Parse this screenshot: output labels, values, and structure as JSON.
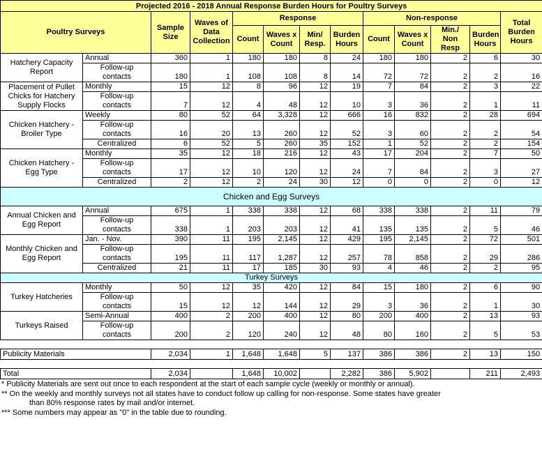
{
  "title": "Projected 2016 - 2018 Annual Response Burden Hours for Poultry Surveys",
  "header": {
    "group_label": "Poultry Surveys",
    "sample_size": "Sample Size",
    "waves": "Waves of Data Collection",
    "response": "Response",
    "nonresponse": "Non-response",
    "total": "Total Burden Hours",
    "sub": [
      "Count",
      "Waves x Count",
      "Min/ Resp.",
      "Burden Hours",
      "Count",
      "Waves x Count",
      "Min./ Non Resp",
      "Burden Hours"
    ]
  },
  "body": [
    {
      "survey": "Hatchery Capacity Report",
      "rows": [
        {
          "label": "Annual",
          "cells": [
            "360",
            "1",
            "180",
            "180",
            "8",
            "24",
            "180",
            "180",
            "2",
            "6",
            "30"
          ]
        },
        {
          "label": "Follow-up contacts",
          "cells": [
            "180",
            "1",
            "108",
            "108",
            "8",
            "14",
            "72",
            "72",
            "2",
            "2",
            "16"
          ]
        }
      ]
    },
    {
      "survey": "Placement of Pullet Chicks for Hatchery Supply Flocks",
      "rows": [
        {
          "label": "Monthly",
          "cells": [
            "15",
            "12",
            "8",
            "96",
            "12",
            "19",
            "7",
            "84",
            "2",
            "3",
            "22"
          ]
        },
        {
          "label": "Follow-up contacts",
          "cells": [
            "7",
            "12",
            "4",
            "48",
            "12",
            "10",
            "3",
            "36",
            "2",
            "1",
            "11"
          ]
        }
      ]
    },
    {
      "survey": "Chicken Hatchery - Broiler Type",
      "rows": [
        {
          "label": "Weekly",
          "cells": [
            "80",
            "52",
            "64",
            "3,328",
            "12",
            "666",
            "16",
            "832",
            "2",
            "28",
            "694"
          ]
        },
        {
          "label": "Follow-up contacts",
          "cells": [
            "16",
            "20",
            "13",
            "260",
            "12",
            "52",
            "3",
            "60",
            "2",
            "2",
            "54"
          ]
        },
        {
          "label": "Centralized",
          "cells": [
            "6",
            "52",
            "5",
            "260",
            "35",
            "152",
            "1",
            "52",
            "2",
            "2",
            "154"
          ]
        }
      ]
    },
    {
      "survey": "Chicken Hatchery - Egg Type",
      "rows": [
        {
          "label": "Monthly",
          "cells": [
            "35",
            "12",
            "18",
            "216",
            "12",
            "43",
            "17",
            "204",
            "2",
            "7",
            "50"
          ]
        },
        {
          "label": "Follow-up contacts",
          "cells": [
            "17",
            "12",
            "10",
            "120",
            "12",
            "24",
            "7",
            "84",
            "2",
            "3",
            "27"
          ]
        },
        {
          "label": "Centralized",
          "cells": [
            "2",
            "12",
            "2",
            "24",
            "30",
            "12",
            "0",
            "0",
            "2",
            "0",
            "12"
          ]
        }
      ]
    },
    {
      "heading": "Chicken and Egg Surveys"
    },
    {
      "survey": "Annual Chicken and Egg Report",
      "rows": [
        {
          "label": "Annual",
          "cells": [
            "675",
            "1",
            "338",
            "338",
            "12",
            "68",
            "338",
            "338",
            "2",
            "11",
            "79"
          ]
        },
        {
          "label": "Follow-up contacts",
          "cells": [
            "338",
            "1",
            "203",
            "203",
            "12",
            "41",
            "135",
            "135",
            "2",
            "5",
            "46"
          ]
        }
      ]
    },
    {
      "survey": "Monthly Chicken and Egg Report",
      "rows": [
        {
          "label": "Jan. - Nov.",
          "cells": [
            "390",
            "11",
            "195",
            "2,145",
            "12",
            "429",
            "195",
            "2,145",
            "2",
            "72",
            "501"
          ]
        },
        {
          "label": "Follow-up contacts",
          "cells": [
            "195",
            "11",
            "117",
            "1,287",
            "12",
            "257",
            "78",
            "858",
            "2",
            "29",
            "286"
          ]
        },
        {
          "label": "Centralized",
          "cells": [
            "21",
            "11",
            "17",
            "185",
            "30",
            "93",
            "4",
            "46",
            "2",
            "2",
            "95"
          ]
        }
      ]
    },
    {
      "heading": "Turkey Surveys"
    },
    {
      "survey": "Turkey Hatcheries",
      "rows": [
        {
          "label": "Monthly",
          "cells": [
            "50",
            "12",
            "35",
            "420",
            "12",
            "84",
            "15",
            "180",
            "2",
            "6",
            "90"
          ]
        },
        {
          "label": "Follow-up contacts",
          "cells": [
            "15",
            "12",
            "12",
            "144",
            "12",
            "29",
            "3",
            "36",
            "2",
            "1",
            "30"
          ]
        }
      ]
    },
    {
      "survey": "Turkeys Raised",
      "rows": [
        {
          "label": "Semi-Annual",
          "cells": [
            "400",
            "2",
            "200",
            "400",
            "12",
            "80",
            "200",
            "400",
            "2",
            "13",
            "93"
          ]
        },
        {
          "label": "Follow-up contacts",
          "cells": [
            "200",
            "2",
            "120",
            "240",
            "12",
            "48",
            "80",
            "160",
            "2",
            "5",
            "53"
          ]
        }
      ]
    },
    {
      "single": "Publicity Materials",
      "cells": [
        "2,034",
        "1",
        "1,648",
        "1,648",
        "5",
        "137",
        "386",
        "386",
        "2",
        "13",
        "150"
      ]
    },
    {
      "single": "Total",
      "cells": [
        "2,034",
        null,
        "1,648",
        "10,002",
        null,
        "2,282",
        "386",
        "5,902",
        null,
        "211",
        "2,493"
      ]
    }
  ],
  "notes": [
    "* Publicity Materials are sent out once to each respondent at the start of each sample cycle (weekly or monthly or annual).",
    "** On the weekly and monthly surveys not all states have to conduct follow up calling for non-response. Some states have greater",
    "than 80% response rates by mail and/or internet.",
    "*** Some numbers may appear as \"0\" in the table due to rounding."
  ]
}
